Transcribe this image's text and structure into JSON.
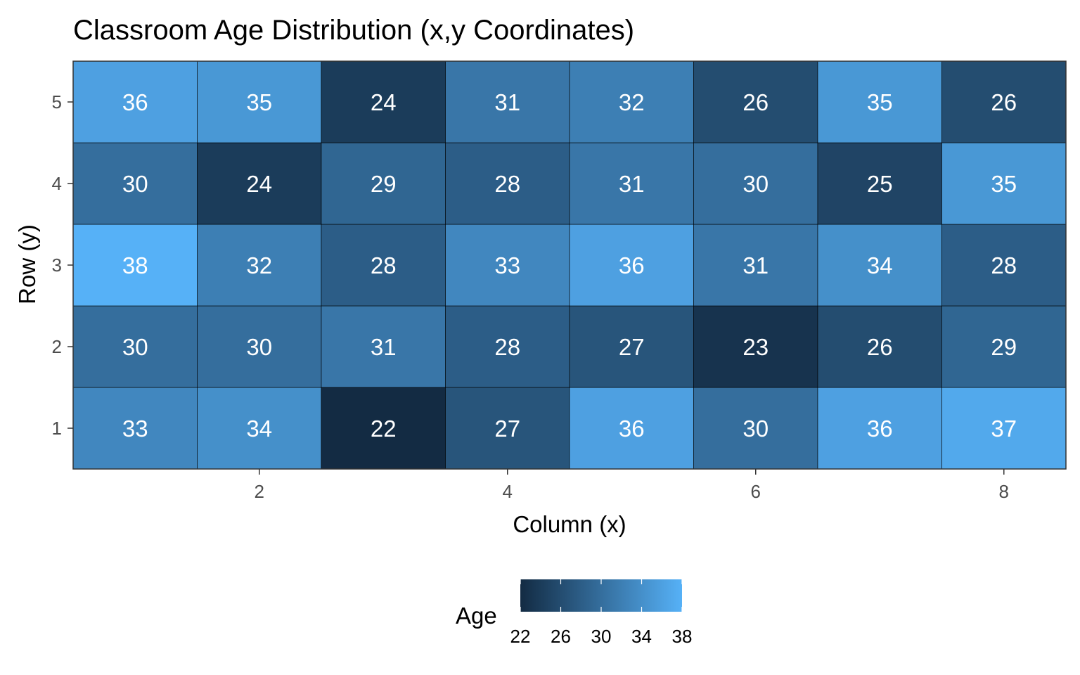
{
  "chart_data": {
    "type": "heatmap",
    "title": "Classroom Age Distribution (x,y Coordinates)",
    "xlabel": "Column (x)",
    "ylabel": "Row (y)",
    "x": [
      1,
      2,
      3,
      4,
      5,
      6,
      7,
      8
    ],
    "y": [
      1,
      2,
      3,
      4,
      5
    ],
    "x_ticks": [
      2,
      4,
      6,
      8
    ],
    "y_ticks": [
      1,
      2,
      3,
      4,
      5
    ],
    "values": [
      [
        33,
        34,
        22,
        27,
        36,
        30,
        36,
        37
      ],
      [
        30,
        30,
        31,
        28,
        27,
        23,
        26,
        29
      ],
      [
        38,
        32,
        28,
        33,
        36,
        31,
        34,
        28
      ],
      [
        30,
        24,
        29,
        28,
        31,
        30,
        25,
        35
      ],
      [
        36,
        35,
        24,
        31,
        32,
        26,
        35,
        26
      ]
    ],
    "legend": {
      "title": "Age",
      "position": "bottom",
      "ticks": [
        22,
        26,
        30,
        34,
        38
      ],
      "low_color": "#132B43",
      "high_color": "#56B1F7"
    },
    "grid": false
  }
}
